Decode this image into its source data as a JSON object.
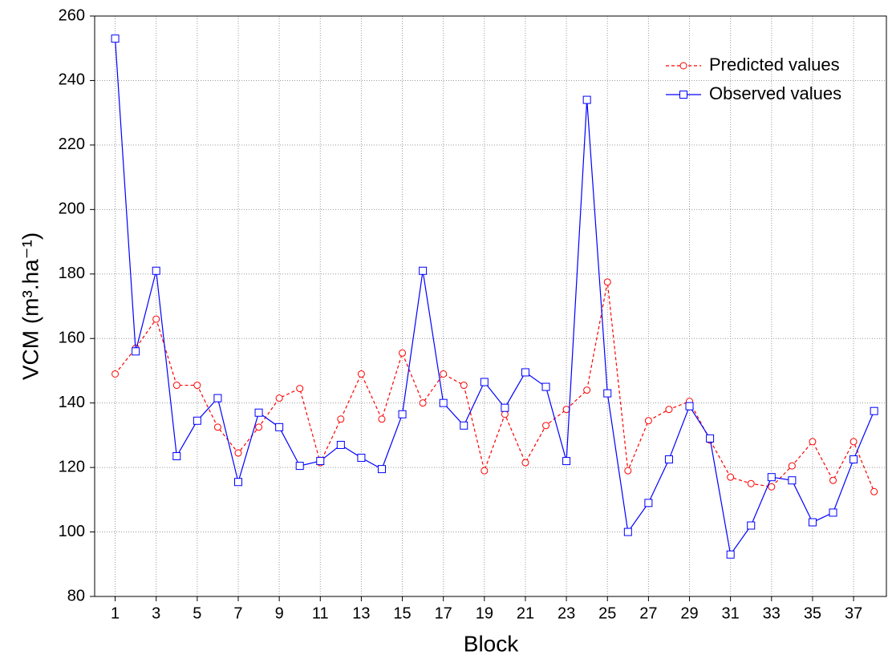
{
  "chart_data": {
    "type": "line",
    "x_label": "Block",
    "y_label": "VCM (m³.ha⁻¹)",
    "x": [
      1,
      2,
      3,
      4,
      5,
      6,
      7,
      8,
      9,
      10,
      11,
      12,
      13,
      14,
      15,
      16,
      17,
      18,
      19,
      20,
      21,
      22,
      23,
      24,
      25,
      26,
      27,
      28,
      29,
      30,
      31,
      32,
      33,
      34,
      35,
      36,
      37,
      38
    ],
    "series": [
      {
        "name": "Predicted values",
        "color": "#ff0000",
        "dash": true,
        "marker": "circle",
        "values": [
          149,
          157,
          166,
          145.5,
          145.5,
          132.5,
          124.5,
          132.5,
          141.5,
          144.5,
          121.5,
          135,
          149,
          135,
          155.5,
          140,
          149,
          145.5,
          119,
          136.5,
          121.5,
          133,
          138,
          144,
          177.5,
          119,
          134.5,
          138,
          140.5,
          128.5,
          117,
          115,
          114,
          120.5,
          128,
          116,
          128,
          112.5
        ]
      },
      {
        "name": "Observed values",
        "color": "#0000ff",
        "dash": false,
        "marker": "square",
        "values": [
          253,
          156,
          181,
          123.5,
          134.5,
          141.5,
          115.5,
          137,
          132.5,
          120.5,
          122,
          127,
          123,
          119.5,
          136.5,
          181,
          140,
          133,
          146.5,
          138.5,
          149.5,
          145,
          122,
          234,
          143,
          100,
          109,
          122.5,
          139,
          129,
          93,
          102,
          117,
          116,
          103,
          106,
          122.5,
          137.5
        ]
      }
    ],
    "xlim": [
      0,
      38.6
    ],
    "ylim": [
      80,
      260
    ],
    "xticks": [
      1,
      3,
      5,
      7,
      9,
      11,
      13,
      15,
      17,
      19,
      21,
      23,
      25,
      27,
      29,
      31,
      33,
      35,
      37
    ],
    "yticks": [
      80,
      100,
      120,
      140,
      160,
      180,
      200,
      220,
      240,
      260
    ],
    "grid": true,
    "legend": "upper-right"
  }
}
